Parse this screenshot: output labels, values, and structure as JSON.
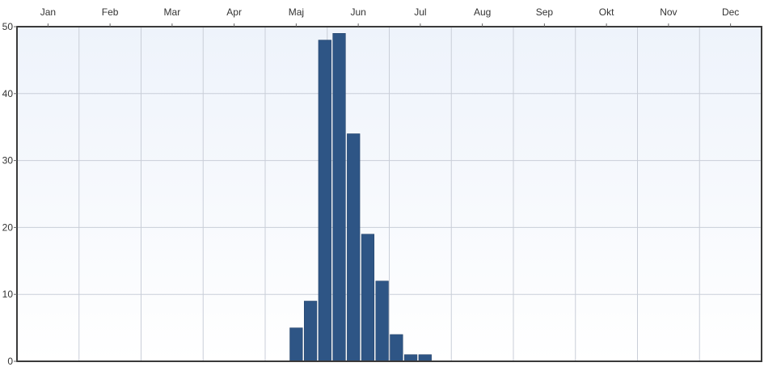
{
  "chart_data": {
    "type": "bar",
    "title": "",
    "xlabel": "",
    "ylabel": "",
    "months": [
      "Jan",
      "Feb",
      "Mar",
      "Apr",
      "Maj",
      "Jun",
      "Jul",
      "Aug",
      "Sep",
      "Okt",
      "Nov",
      "Dec"
    ],
    "y_ticks": [
      0,
      10,
      20,
      30,
      40,
      50
    ],
    "ylim": [
      0,
      50
    ],
    "xlim_weeks": [
      0,
      52
    ],
    "grid": true,
    "bar_color": "#2e5585",
    "bar_stroke": "#1f3d63",
    "bars": [
      {
        "week": 19,
        "value": 5
      },
      {
        "week": 20,
        "value": 9
      },
      {
        "week": 21,
        "value": 48
      },
      {
        "week": 22,
        "value": 49
      },
      {
        "week": 23,
        "value": 34
      },
      {
        "week": 24,
        "value": 19
      },
      {
        "week": 25,
        "value": 12
      },
      {
        "week": 26,
        "value": 4
      },
      {
        "week": 27,
        "value": 1
      },
      {
        "week": 28,
        "value": 1
      }
    ]
  }
}
